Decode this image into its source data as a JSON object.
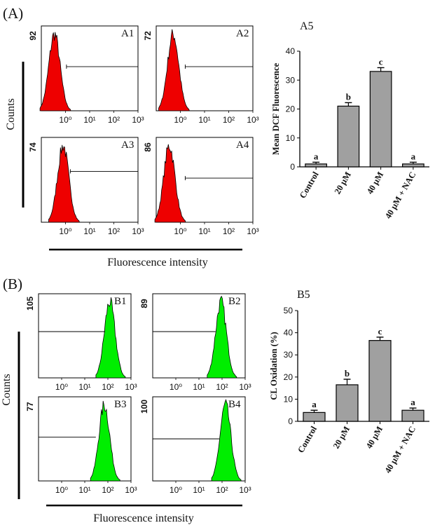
{
  "sections": {
    "A": {
      "label": "(A)",
      "ylabel": "Counts",
      "xlabel": "Fluorescence intensity"
    },
    "B": {
      "label": "(B)",
      "ylabel": "Counts",
      "xlabel": "Fluorescence intensity"
    }
  },
  "colors": {
    "histA": "#ee0000",
    "histB": "#00ee00",
    "bar": "#a0a0a0"
  },
  "chart_data": [
    {
      "type": "histogram",
      "id": "A1",
      "panel_label": "A1",
      "count_label": "92",
      "x_ticks": [
        "10⁰",
        "10¹",
        "10²",
        "10³"
      ],
      "xscale": "log",
      "xlim": [
        0.1,
        1000
      ],
      "peak_x": 0.35,
      "color": "#ee0000"
    },
    {
      "type": "histogram",
      "id": "A2",
      "panel_label": "A2",
      "count_label": "72",
      "x_ticks": [
        "10⁰",
        "10¹",
        "10²",
        "10³"
      ],
      "xscale": "log",
      "xlim": [
        0.1,
        1000
      ],
      "peak_x": 0.5,
      "color": "#ee0000"
    },
    {
      "type": "histogram",
      "id": "A3",
      "panel_label": "A3",
      "count_label": "74",
      "x_ticks": [
        "10⁰",
        "10¹",
        "10²",
        "10³"
      ],
      "xscale": "log",
      "xlim": [
        0.1,
        1000
      ],
      "peak_x": 0.8,
      "color": "#ee0000"
    },
    {
      "type": "histogram",
      "id": "A4",
      "panel_label": "A4",
      "count_label": "86",
      "x_ticks": [
        "10⁰",
        "10¹",
        "10²",
        "10³"
      ],
      "xscale": "log",
      "xlim": [
        0.1,
        1000
      ],
      "peak_x": 0.35,
      "color": "#ee0000"
    },
    {
      "type": "bar",
      "id": "A5",
      "title": "A5",
      "ylabel": "Mean DCF Fluorescence",
      "categories": [
        "Control",
        "20 μM",
        "40 μM",
        "40 μM + NAC"
      ],
      "values": [
        1,
        21,
        33,
        1
      ],
      "errors": [
        0.6,
        1.2,
        1.3,
        0.6
      ],
      "labels": [
        "a",
        "b",
        "c",
        "a"
      ],
      "ylim": [
        0,
        40
      ],
      "yticks": [
        0,
        10,
        20,
        30,
        40
      ]
    },
    {
      "type": "histogram",
      "id": "B1",
      "panel_label": "B1",
      "count_label": "105",
      "x_ticks": [
        "10⁰",
        "10¹",
        "10²",
        "10³"
      ],
      "xscale": "log",
      "xlim": [
        0.1,
        1000
      ],
      "peak_x": 120,
      "color": "#00ee00"
    },
    {
      "type": "histogram",
      "id": "B2",
      "panel_label": "B2",
      "count_label": "89",
      "x_ticks": [
        "10⁰",
        "10¹",
        "10²",
        "10³"
      ],
      "xscale": "log",
      "xlim": [
        0.1,
        1000
      ],
      "peak_x": 90,
      "color": "#00ee00"
    },
    {
      "type": "histogram",
      "id": "B3",
      "panel_label": "B3",
      "count_label": "77",
      "x_ticks": [
        "10⁰",
        "10¹",
        "10²",
        "10³"
      ],
      "xscale": "log",
      "xlim": [
        0.1,
        1000
      ],
      "peak_x": 70,
      "color": "#00ee00"
    },
    {
      "type": "histogram",
      "id": "B4",
      "panel_label": "B4",
      "count_label": "100",
      "x_ticks": [
        "10⁰",
        "10¹",
        "10²",
        "10³"
      ],
      "xscale": "log",
      "xlim": [
        0.1,
        1000
      ],
      "peak_x": 140,
      "color": "#00ee00"
    },
    {
      "type": "bar",
      "id": "B5",
      "title": "B5",
      "ylabel": "CL Oxidation (%)",
      "categories": [
        "Control",
        "20 μM",
        "40 μM",
        "40 μM + NAC"
      ],
      "values": [
        4,
        16.5,
        36.5,
        5
      ],
      "errors": [
        1,
        2.5,
        1.5,
        1
      ],
      "labels": [
        "a",
        "b",
        "c",
        "a"
      ],
      "ylim": [
        0,
        50
      ],
      "yticks": [
        0,
        10,
        20,
        30,
        40,
        50
      ]
    }
  ]
}
